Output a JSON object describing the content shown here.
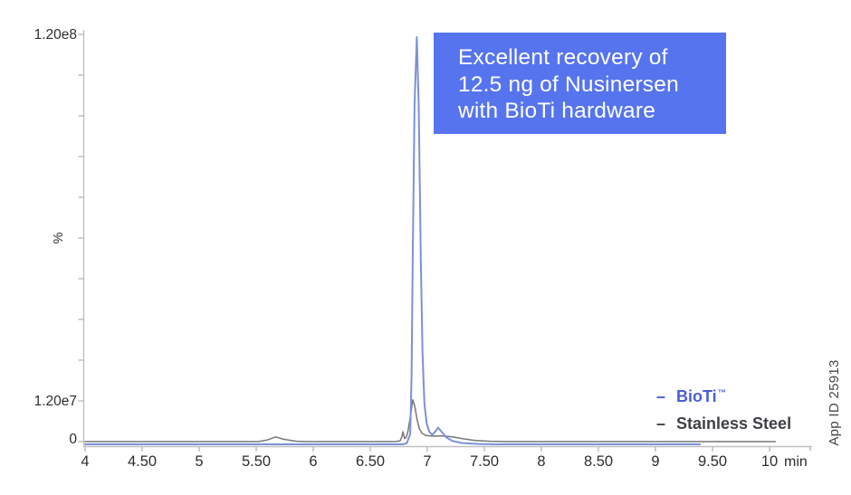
{
  "annotation": {
    "lines": [
      "Excellent recovery of",
      "12.5 ng of Nusinersen",
      "with BioTi hardware"
    ],
    "bg_color": "#5674ee",
    "text_color": "#ffffff"
  },
  "legend": {
    "marker": "–",
    "entries": [
      {
        "label": "BioTi",
        "sup": "™",
        "color": "#4a5cd9"
      },
      {
        "label": "Stainless Steel",
        "sup": "",
        "color": "#404047"
      }
    ]
  },
  "watermark": {
    "text": "App ID 25913"
  },
  "chart_data": {
    "type": "line",
    "title": "",
    "xlabel": "min",
    "ylabel": "%",
    "xlim": [
      4,
      10.4
    ],
    "ylim": [
      0,
      126000000
    ],
    "grid": false,
    "legend_position": "bottom-right",
    "x_ticks": [
      {
        "value": 4,
        "label": "4"
      },
      {
        "value": 4.5,
        "label": "4.50"
      },
      {
        "value": 5,
        "label": "5"
      },
      {
        "value": 5.5,
        "label": "5.50"
      },
      {
        "value": 6,
        "label": "6"
      },
      {
        "value": 6.5,
        "label": "6.50"
      },
      {
        "value": 7,
        "label": "7"
      },
      {
        "value": 7.5,
        "label": "7.50"
      },
      {
        "value": 8,
        "label": "8"
      },
      {
        "value": 8.5,
        "label": "8.50"
      },
      {
        "value": 9,
        "label": "9"
      },
      {
        "value": 9.5,
        "label": "9.50"
      },
      {
        "value": 10,
        "label": "10"
      }
    ],
    "y_tick_step": 12000000,
    "y_tick_count": 11,
    "y_labeled_ticks": [
      {
        "value": 120000000,
        "label": "1.20e8"
      },
      {
        "value": 12000000,
        "label": "1.20e7"
      },
      {
        "value": 0,
        "label": "0"
      }
    ],
    "series": [
      {
        "name": "Stainless Steel",
        "color": "#76767a",
        "width": 1.5,
        "peak_retention_min": 6.87,
        "peak_height": 12300000,
        "points": [
          [
            4.0,
            0
          ],
          [
            5.52,
            0
          ],
          [
            5.6,
            500000
          ],
          [
            5.67,
            1400000
          ],
          [
            5.74,
            700000
          ],
          [
            5.85,
            100000
          ],
          [
            5.95,
            0
          ],
          [
            6.72,
            0
          ],
          [
            6.76,
            200000
          ],
          [
            6.775,
            1200000
          ],
          [
            6.787,
            2900000
          ],
          [
            6.8,
            900000
          ],
          [
            6.815,
            1300000
          ],
          [
            6.83,
            3000000
          ],
          [
            6.85,
            7000000
          ],
          [
            6.872,
            12300000
          ],
          [
            6.89,
            10500000
          ],
          [
            6.91,
            6500000
          ],
          [
            6.93,
            3800000
          ],
          [
            6.955,
            2400000
          ],
          [
            6.99,
            1800000
          ],
          [
            7.05,
            1600000
          ],
          [
            7.12,
            1700000
          ],
          [
            7.22,
            1400000
          ],
          [
            7.32,
            800000
          ],
          [
            7.42,
            350000
          ],
          [
            7.55,
            100000
          ],
          [
            7.7,
            0
          ],
          [
            10.05,
            0
          ]
        ]
      },
      {
        "name": "BioTi",
        "color": "#7b91d8",
        "width": 2,
        "peak_retention_min": 6.91,
        "peak_height": 120000000,
        "points": [
          [
            4.0,
            0
          ],
          [
            6.78,
            0
          ],
          [
            6.82,
            300000
          ],
          [
            6.85,
            3000000
          ],
          [
            6.862,
            20000000
          ],
          [
            6.872,
            55000000
          ],
          [
            6.888,
            100000000
          ],
          [
            6.908,
            120000000
          ],
          [
            6.925,
            100000000
          ],
          [
            6.943,
            55000000
          ],
          [
            6.958,
            27000000
          ],
          [
            6.975,
            12000000
          ],
          [
            6.995,
            6000000
          ],
          [
            7.02,
            3600000
          ],
          [
            7.045,
            2800000
          ],
          [
            7.07,
            3800000
          ],
          [
            7.095,
            4900000
          ],
          [
            7.125,
            3700000
          ],
          [
            7.165,
            2100000
          ],
          [
            7.22,
            1000000
          ],
          [
            7.3,
            400000
          ],
          [
            7.45,
            100000
          ],
          [
            7.6,
            0
          ],
          [
            9.39,
            0
          ]
        ]
      }
    ]
  }
}
